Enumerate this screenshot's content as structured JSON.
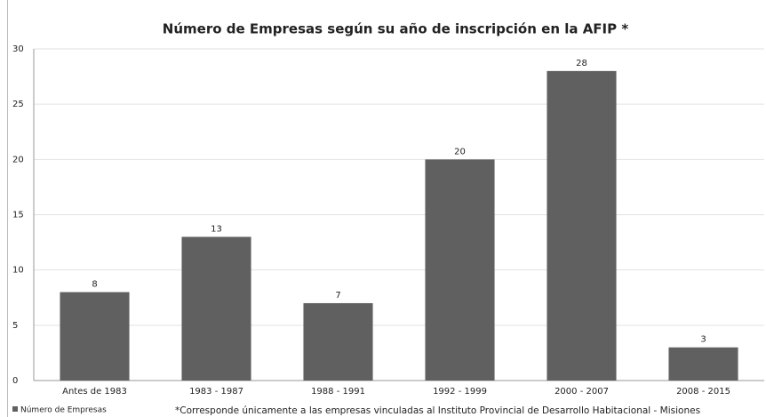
{
  "chart_data": {
    "type": "bar",
    "title": "Número de Empresas según su año de inscripción en la AFIP *",
    "categories": [
      "Antes de 1983",
      "1983 - 1987",
      "1988 - 1991",
      "1992 - 1999",
      "2000 - 2007",
      "2008 - 2015"
    ],
    "series": [
      {
        "name": "Número de Empresas",
        "color": "#606060",
        "values": [
          8,
          13,
          7,
          20,
          28,
          3
        ]
      }
    ],
    "ylim": [
      0,
      30
    ],
    "yticks": [
      0,
      5,
      10,
      15,
      20,
      25,
      30
    ],
    "grid": true,
    "legend": "bottom-left",
    "footnote": "*Corresponde únicamente a las empresas vinculadas al Instituto Provincial de Desarrollo Habitacional - Misiones"
  }
}
